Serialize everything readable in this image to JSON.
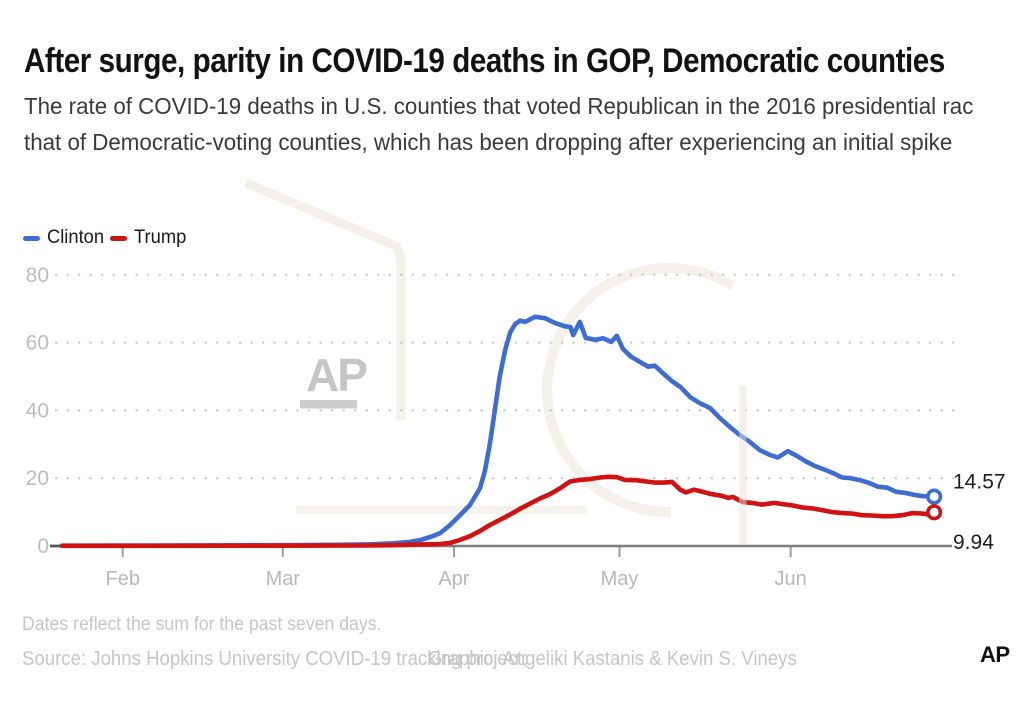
{
  "header": {
    "title": "After surge, parity in COVID-19 deaths in GOP, Democratic counties",
    "subtitle_line1": "The rate of COVID-19 deaths in U.S. counties that voted Republican in the 2016 presidential rac",
    "subtitle_line2": "that of Democratic-voting counties, which has been dropping after experiencing an initial spike"
  },
  "legend": [
    {
      "label": "Clinton",
      "color": "#3d6dd2"
    },
    {
      "label": "Trump",
      "color": "#cf1312"
    }
  ],
  "watermark": {
    "text": "AP"
  },
  "chart_data": {
    "type": "line",
    "title": "After surge, parity in COVID-19 deaths in GOP, Democratic counties",
    "xlabel": "",
    "ylabel": "",
    "ylim": [
      0,
      80
    ],
    "y_ticks": [
      0,
      20,
      40,
      60,
      80
    ],
    "grid": "dotted horizontal gridlines",
    "legend_position": "top-left",
    "x_unit": "day offset from data start (late January)",
    "x_ticks": [
      {
        "label": "Feb",
        "day": 11
      },
      {
        "label": "Mar",
        "day": 40
      },
      {
        "label": "Apr",
        "day": 71
      },
      {
        "label": "May",
        "day": 101
      },
      {
        "label": "Jun",
        "day": 132
      }
    ],
    "series": [
      {
        "name": "Clinton",
        "color": "#3d6dd2",
        "end_label": "14.57",
        "end_value": 14.57,
        "points": [
          [
            0,
            0.1
          ],
          [
            20,
            0.15
          ],
          [
            40,
            0.25
          ],
          [
            50,
            0.35
          ],
          [
            56,
            0.5
          ],
          [
            60,
            0.8
          ],
          [
            63,
            1.2
          ],
          [
            65,
            1.8
          ],
          [
            67,
            2.8
          ],
          [
            68.5,
            3.8
          ],
          [
            70.3,
            6.2
          ],
          [
            72.1,
            9.1
          ],
          [
            73.9,
            12.1
          ],
          [
            75.7,
            17
          ],
          [
            76.6,
            22
          ],
          [
            77.5,
            30
          ],
          [
            78.4,
            40
          ],
          [
            79.3,
            50
          ],
          [
            80.3,
            58
          ],
          [
            81.2,
            63
          ],
          [
            82.1,
            65.5
          ],
          [
            83,
            66.5
          ],
          [
            83.9,
            66.1
          ],
          [
            85.7,
            67.6
          ],
          [
            87.5,
            67.2
          ],
          [
            89.3,
            65.8
          ],
          [
            91.1,
            64.8
          ],
          [
            92.1,
            64.6
          ],
          [
            92.6,
            62.2
          ],
          [
            93.8,
            66.1
          ],
          [
            94.9,
            61.4
          ],
          [
            96.6,
            60.8
          ],
          [
            98,
            61.3
          ],
          [
            99.5,
            60.2
          ],
          [
            100.5,
            62
          ],
          [
            101.6,
            58.2
          ],
          [
            103.1,
            55.8
          ],
          [
            104.7,
            54.3
          ],
          [
            106.2,
            52.9
          ],
          [
            107.4,
            53.2
          ],
          [
            108.9,
            50.9
          ],
          [
            110.5,
            48.6
          ],
          [
            112.1,
            46.8
          ],
          [
            113.8,
            43.9
          ],
          [
            115.6,
            42.1
          ],
          [
            117.4,
            40.7
          ],
          [
            119.2,
            37.7
          ],
          [
            121,
            35.1
          ],
          [
            122.8,
            32.7
          ],
          [
            124.6,
            30.7
          ],
          [
            126.4,
            28.3
          ],
          [
            128.3,
            26.8
          ],
          [
            129.7,
            26.1
          ],
          [
            131.5,
            28
          ],
          [
            133.2,
            26.5
          ],
          [
            134.8,
            24.9
          ],
          [
            136.4,
            23.6
          ],
          [
            138,
            22.6
          ],
          [
            139.7,
            21.5
          ],
          [
            141.3,
            20.2
          ],
          [
            142.9,
            20
          ],
          [
            144.6,
            19.4
          ],
          [
            146.2,
            18.6
          ],
          [
            147.8,
            17.5
          ],
          [
            149.5,
            17.2
          ],
          [
            151.1,
            16
          ],
          [
            152.7,
            15.7
          ],
          [
            154.3,
            15.1
          ],
          [
            156,
            14.7
          ],
          [
            158,
            14.57
          ]
        ]
      },
      {
        "name": "Trump",
        "color": "#cf1312",
        "end_label": "9.94",
        "end_value": 9.94,
        "points": [
          [
            0,
            0.05
          ],
          [
            40,
            0.1
          ],
          [
            55,
            0.15
          ],
          [
            60,
            0.25
          ],
          [
            64,
            0.4
          ],
          [
            66.5,
            0.5
          ],
          [
            68.5,
            0.6
          ],
          [
            70.3,
            0.9
          ],
          [
            72.1,
            1.8
          ],
          [
            73.9,
            2.9
          ],
          [
            75.7,
            4.4
          ],
          [
            77.5,
            6.2
          ],
          [
            79.3,
            7.7
          ],
          [
            81.2,
            9.3
          ],
          [
            83,
            11
          ],
          [
            84.8,
            12.5
          ],
          [
            86.6,
            14
          ],
          [
            88.4,
            15.3
          ],
          [
            90.2,
            17
          ],
          [
            92,
            19
          ],
          [
            93.8,
            19.5
          ],
          [
            95.5,
            19.7
          ],
          [
            97.5,
            20.2
          ],
          [
            99,
            20.4
          ],
          [
            100.5,
            20.3
          ],
          [
            102,
            19.5
          ],
          [
            104,
            19.4
          ],
          [
            106,
            19
          ],
          [
            107.5,
            18.7
          ],
          [
            109,
            18.7
          ],
          [
            110.5,
            18.9
          ],
          [
            112,
            16.6
          ],
          [
            113,
            15.8
          ],
          [
            114.5,
            16.6
          ],
          [
            115.6,
            16.2
          ],
          [
            117.4,
            15.4
          ],
          [
            119.5,
            14.8
          ],
          [
            120.7,
            14.2
          ],
          [
            121.5,
            14.5
          ],
          [
            123.2,
            13
          ],
          [
            125,
            12.7
          ],
          [
            126.8,
            12.2
          ],
          [
            129,
            12.7
          ],
          [
            130.4,
            12.4
          ],
          [
            132.2,
            12
          ],
          [
            134,
            11.4
          ],
          [
            135.9,
            11.1
          ],
          [
            137.7,
            10.6
          ],
          [
            139.5,
            10
          ],
          [
            141.3,
            9.7
          ],
          [
            143.1,
            9.6
          ],
          [
            144.9,
            9.1
          ],
          [
            146.7,
            9
          ],
          [
            148.6,
            8.8
          ],
          [
            150.4,
            8.8
          ],
          [
            152.2,
            9.1
          ],
          [
            154,
            9.7
          ],
          [
            155.8,
            9.6
          ],
          [
            157,
            9.3
          ],
          [
            158,
            9.94
          ]
        ]
      }
    ]
  },
  "footer": {
    "note": "Dates reflect the sum for the past seven days.",
    "source": "Source: Johns Hopkins University COVID-19 tracking project;",
    "credit": "Graphic: Angeliki Kastanis & Kevin S. Vineys",
    "logo": "AP",
    "logo_red": "#ef3340"
  }
}
